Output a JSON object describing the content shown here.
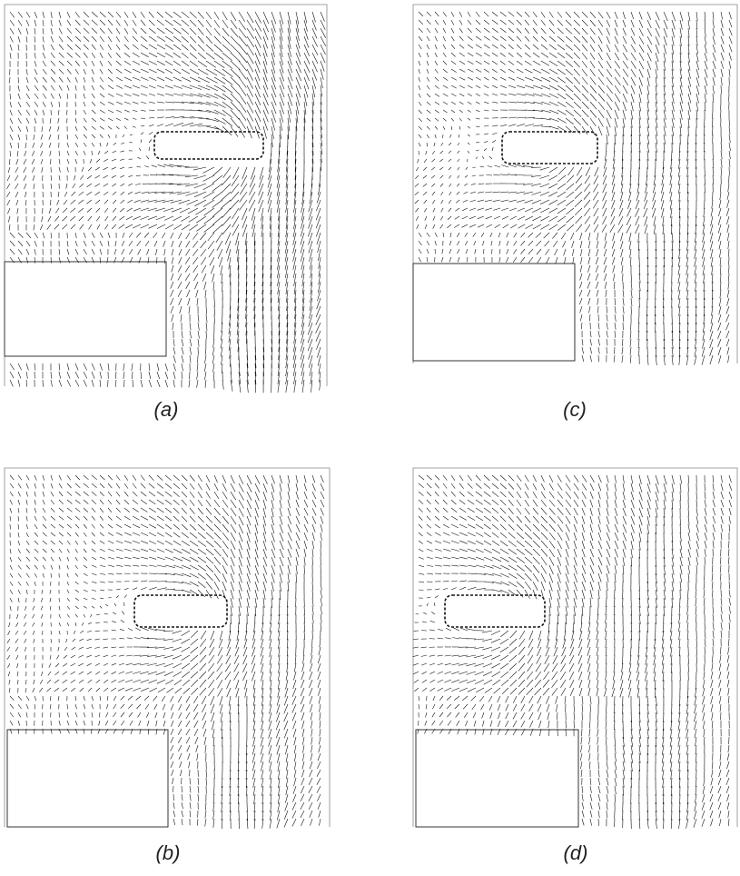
{
  "panels": [
    {
      "label": "(a)"
    },
    {
      "label": "(c)"
    },
    {
      "label": "(b)"
    },
    {
      "label": "(d)"
    }
  ]
}
